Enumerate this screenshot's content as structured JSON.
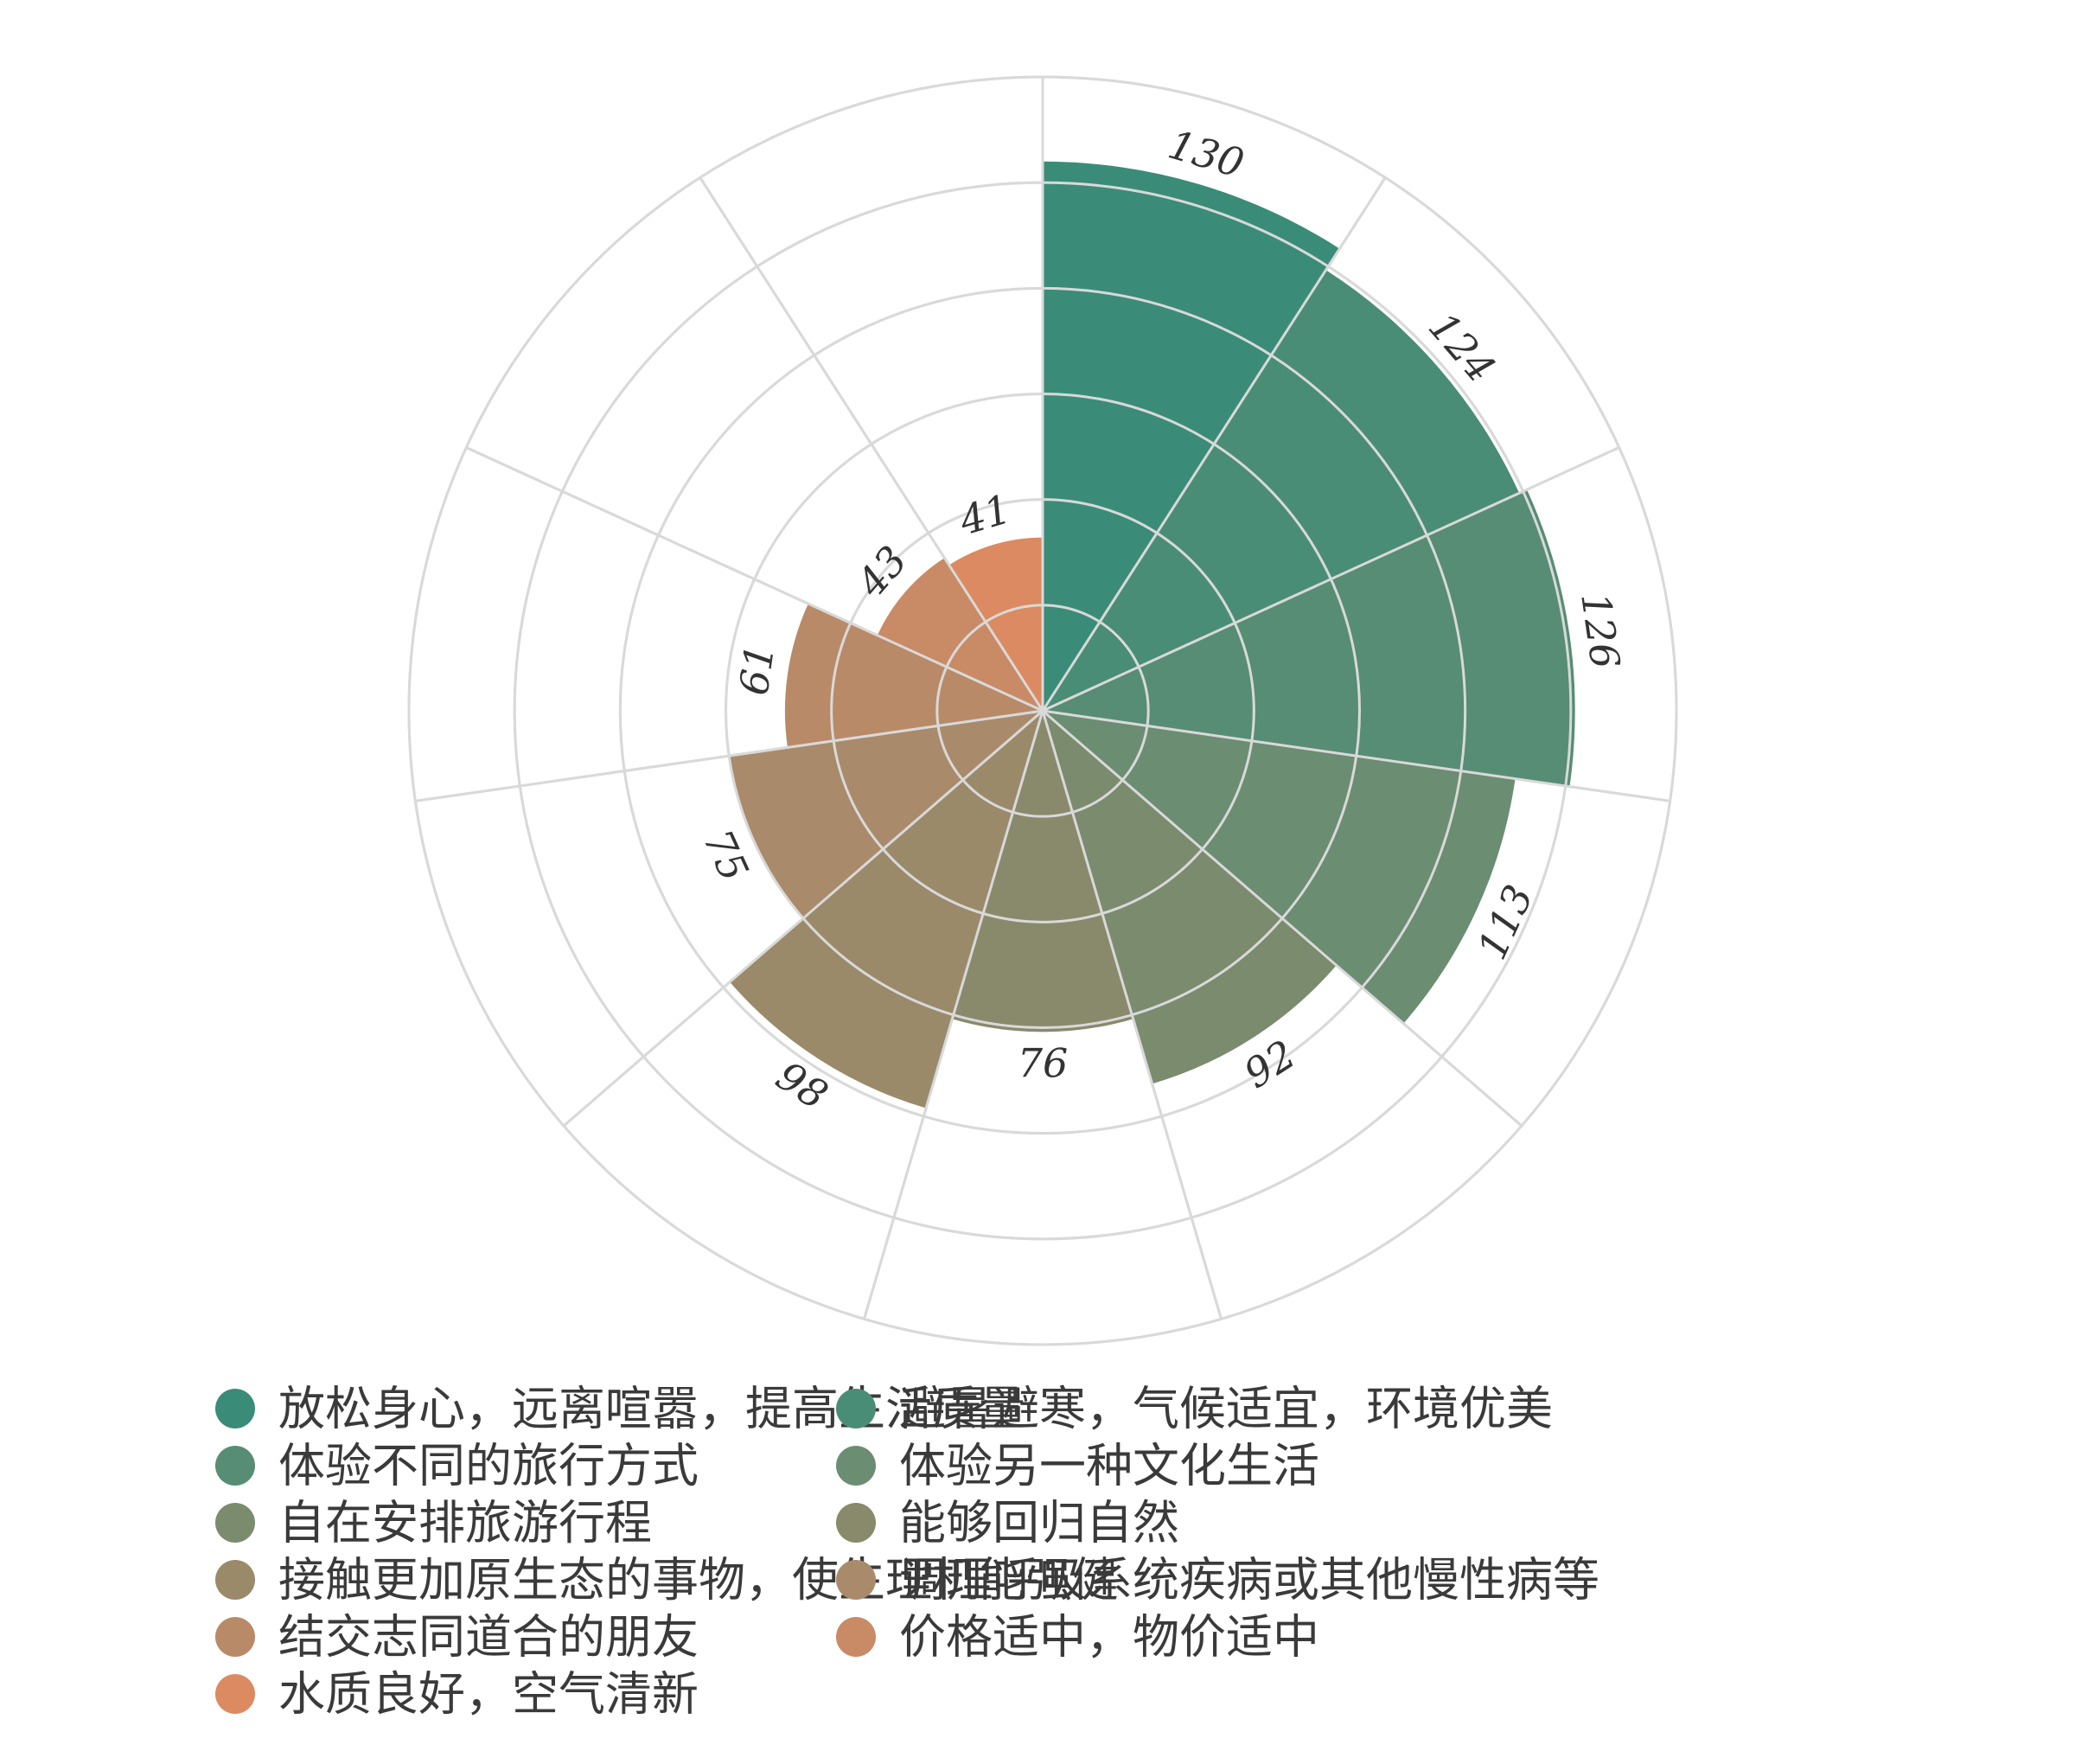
{
  "chart_data": {
    "type": "bar",
    "polar": true,
    "radial_max": 150,
    "grid_step": 25,
    "categories": [
      "放松身心，远离喧嚣，提高生活质量",
      "避暑避寒，气候适宜，环境优美",
      "体验不同的旅行方式",
      "体验另一种文化生活",
      "自在安排旅游行程",
      "能够回归自然",
      "接触更加原生态的事物，使生理机能强健",
      "调理呼吸系统疾病或其他慢性病等",
      "结交志同道合的朋友",
      "价格适中，物价适中",
      "水质良好，空气清新"
    ],
    "values": [
      130,
      124,
      126,
      113,
      92,
      76,
      98,
      75,
      61,
      43,
      41
    ],
    "value_labels": [
      "130",
      "124",
      "126",
      "113",
      "92",
      "76",
      "98",
      "75",
      "61",
      "43",
      "41"
    ],
    "colors": [
      "#3a8c78",
      "#4a8d76",
      "#568d74",
      "#6b8d72",
      "#7b8b6e",
      "#898a6c",
      "#9a8a6a",
      "#a98a6a",
      "#b98a68",
      "#c98a66",
      "#dc8a62"
    ],
    "legend_position": "bottom",
    "grid": true
  }
}
